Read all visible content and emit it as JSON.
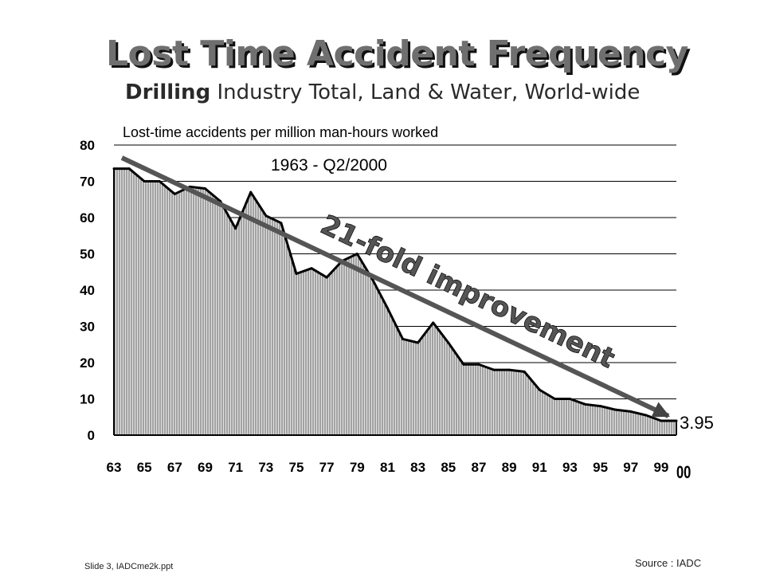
{
  "slide": {
    "title": "Lost Time Accident Frequency",
    "subtitle_bold": "Drilling",
    "subtitle_rest": " Industry Total, Land & Water, World-wide",
    "footer_left": "Slide 3, IADCme2k.ppt",
    "footer_right": "Source : IADC"
  },
  "colors": {
    "trend_arrow": "#555555",
    "title": "#6f6f6f",
    "line": "#000000"
  },
  "chart_data": {
    "type": "area",
    "title": "Lost-time accidents per million man-hours worked",
    "period_label": "1963 - Q2/2000",
    "annotation": "21-fold improvement",
    "end_value_label": "3.95",
    "ylabel": "Lost-time accidents per million man-hours worked",
    "xlabel": "",
    "ylim": [
      0,
      80
    ],
    "y_ticks": [
      "0",
      "10",
      "20",
      "30",
      "40",
      "50",
      "60",
      "70",
      "80"
    ],
    "x_tick_labels": [
      "63",
      "65",
      "67",
      "69",
      "71",
      "73",
      "75",
      "77",
      "79",
      "81",
      "83",
      "85",
      "87",
      "89",
      "91",
      "93",
      "95",
      "97",
      "99"
    ],
    "x_last_label": "00",
    "grid": true,
    "series": [
      {
        "name": "Lost Time Accident Frequency",
        "x": [
          1963,
          1964,
          1965,
          1966,
          1967,
          1968,
          1969,
          1970,
          1971,
          1972,
          1973,
          1974,
          1975,
          1976,
          1977,
          1978,
          1979,
          1980,
          1981,
          1982,
          1983,
          1984,
          1985,
          1986,
          1987,
          1988,
          1989,
          1990,
          1991,
          1992,
          1993,
          1994,
          1995,
          1996,
          1997,
          1998,
          1999,
          2000
        ],
        "values": [
          73.5,
          73.5,
          70,
          70,
          66.5,
          68.5,
          68,
          64.5,
          57,
          67,
          60.5,
          58.5,
          44.5,
          46,
          43.5,
          48,
          50,
          43,
          35,
          26.5,
          25.5,
          31,
          25.5,
          19.5,
          19.5,
          18,
          18,
          17.5,
          12.5,
          10,
          10,
          8.5,
          8,
          7,
          6.5,
          5.5,
          3.95,
          3.95
        ]
      }
    ]
  }
}
